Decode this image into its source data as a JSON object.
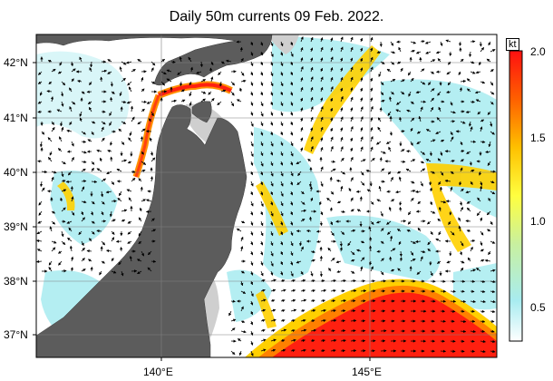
{
  "title": "Daily 50m currents 09 Feb. 2022.",
  "latitude_labels": [
    "42°N",
    "41°N",
    "40°N",
    "39°N",
    "38°N",
    "37°N"
  ],
  "longitude_labels": [
    "140°E",
    "145°E"
  ],
  "colorbar": {
    "unit": "kt",
    "ticks": [
      "2.0",
      "1.5",
      "1.0",
      "0.5"
    ],
    "min": 0.2,
    "max": 2.0,
    "stops": [
      {
        "value": 0.2,
        "color": "#ffffff"
      },
      {
        "value": 0.45,
        "color": "#a8ecf0"
      },
      {
        "value": 0.8,
        "color": "#c8f0a0"
      },
      {
        "value": 1.1,
        "color": "#ffff40"
      },
      {
        "value": 1.4,
        "color": "#ffc000"
      },
      {
        "value": 1.7,
        "color": "#ff6000"
      },
      {
        "value": 2.0,
        "color": "#ff1010"
      }
    ]
  },
  "colors": {
    "land": "#5c5c5c",
    "shelf": "#cfcfcf",
    "strong_current": "#ff2a10",
    "moderate_current": "#ffd000",
    "weak_current": "#9fe9f0"
  }
}
